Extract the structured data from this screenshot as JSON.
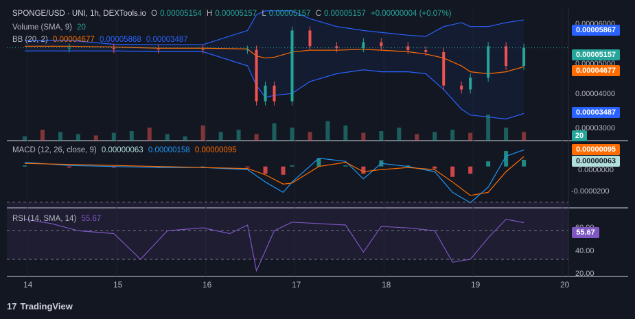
{
  "header": {
    "symbol": "SPONGE/USD · UNI, 1h, DEXTools.io",
    "o_label": "O",
    "o_value": "0.00005154",
    "h_label": "H",
    "h_value": "0.00005157",
    "l_label": "L",
    "l_value": "0.00005157",
    "c_label": "C",
    "c_value": "0.00005157",
    "change": "+0.00000004 (+0.07%)",
    "volume_label": "Volume (SMA, 9)",
    "volume_value": "20",
    "bb_label": "BB (20, 2)",
    "bb_basis": "0.00004677",
    "bb_upper": "0.00005868",
    "bb_lower": "0.00003487"
  },
  "price_tags": {
    "upper": "0.00005867",
    "last": "0.00005157",
    "basis": "0.00004677",
    "lower": "0.00003487",
    "volume": "20"
  },
  "price_axis": [
    "0.00006000",
    "0.00005000",
    "0.00004000",
    "0.00003000"
  ],
  "macd": {
    "label": "MACD (12, 26, close, 9)",
    "hist_value": "0.00000063",
    "macd_value": "0.00000158",
    "signal_value": "0.00000095",
    "tag_signal": "0.00000095",
    "tag_hist": "0.00000063",
    "axis": [
      "0.0000000",
      "-0.0000200"
    ]
  },
  "rsi": {
    "label": "RSI (14, SMA, 14)",
    "value": "55.67",
    "tag": "55.67",
    "axis": [
      "60.00",
      "40.00",
      "20.00"
    ]
  },
  "x_axis": [
    "14",
    "15",
    "16",
    "17",
    "18",
    "19",
    "20"
  ],
  "footer": {
    "brand": "TradingView",
    "logo": "17"
  },
  "colors": {
    "bg": "#131722",
    "up": "#26a69a",
    "down": "#ef5350",
    "bb_band": "#2962ff",
    "bb_basis": "#ff6d00",
    "macd": "#2196f3",
    "signal": "#ff6d00",
    "rsi": "#7e57c2"
  },
  "chart_data": [
    {
      "type": "candlestick",
      "title": "SPONGE/USD · UNI, 1h, DEXTools.io",
      "x": [
        "14",
        "14.5",
        "15",
        "15.5",
        "16",
        "16.5",
        "16.6",
        "16.7",
        "16.8",
        "17",
        "17.2",
        "17.5",
        "17.8",
        "18",
        "18.3",
        "18.5",
        "18.7",
        "18.9",
        "19",
        "19.2",
        "19.4",
        "19.6"
      ],
      "series": [
        {
          "name": "close",
          "values": [
            5.15e-05,
            5.16e-05,
            5.13e-05,
            5.12e-05,
            5.11e-05,
            5.11e-05,
            3.8e-05,
            4.2e-05,
            3.8e-05,
            5.6e-05,
            5.2e-05,
            5.15e-05,
            5.3e-05,
            5.2e-05,
            5.1e-05,
            5.05e-05,
            4.2e-05,
            4.1e-05,
            4.4e-05,
            5.2e-05,
            4.7e-05,
            5.16e-05
          ]
        },
        {
          "name": "BB upper",
          "values": [
            5.35e-05,
            5.35e-05,
            5.25e-05,
            5.24e-05,
            5.24e-05,
            5.6e-05,
            6e-05,
            6.1e-05,
            6.1e-05,
            6.1e-05,
            5.9e-05,
            5.7e-05,
            5.6e-05,
            5.55e-05,
            5.48e-05,
            5.45e-05,
            5.7e-05,
            5.8e-05,
            5.7e-05,
            5.7e-05,
            5.8e-05,
            5.87e-05
          ]
        },
        {
          "name": "BB basis",
          "values": [
            5.2e-05,
            5.2e-05,
            5.18e-05,
            5.15e-05,
            5.15e-05,
            5.13e-05,
            4.95e-05,
            4.9e-05,
            4.92e-05,
            5.05e-05,
            5.1e-05,
            5.1e-05,
            5.12e-05,
            5.1e-05,
            5.06e-05,
            5e-05,
            4.9e-05,
            4.7e-05,
            4.55e-05,
            4.5e-05,
            4.55e-05,
            4.68e-05
          ]
        },
        {
          "name": "BB lower",
          "values": [
            5.08e-05,
            5.08e-05,
            5.08e-05,
            5.06e-05,
            5.06e-05,
            4.7e-05,
            4.2e-05,
            3.9e-05,
            3.95e-05,
            4e-05,
            4.3e-05,
            4.5e-05,
            4.6e-05,
            4.55e-05,
            4.55e-05,
            4.5e-05,
            4.1e-05,
            3.6e-05,
            3.45e-05,
            3.4e-05,
            3.35e-05,
            3.49e-05
          ]
        }
      ],
      "ylim": [
        2.8e-05,
        6.2e-05
      ]
    },
    {
      "type": "bar",
      "title": "Volume (SMA, 9)",
      "x": [
        "14",
        "14.2",
        "14.4",
        "14.6",
        "14.8",
        "15",
        "15.2",
        "15.4",
        "15.6",
        "15.8",
        "16",
        "16.2",
        "16.4",
        "16.6",
        "16.8",
        "17",
        "17.2",
        "17.4",
        "17.6",
        "17.8",
        "18",
        "18.2",
        "18.4",
        "18.6",
        "18.8",
        "19",
        "19.2",
        "19.4",
        "19.6"
      ],
      "values": [
        10,
        25,
        20,
        15,
        12,
        18,
        22,
        30,
        15,
        10,
        35,
        20,
        25,
        15,
        40,
        30,
        20,
        45,
        35,
        18,
        22,
        30,
        15,
        20,
        25,
        18,
        60,
        30,
        20
      ]
    },
    {
      "type": "line",
      "title": "MACD (12, 26, close, 9)",
      "x": [
        "14",
        "14.5",
        "15",
        "15.5",
        "16",
        "16.5",
        "16.7",
        "16.9",
        "17",
        "17.3",
        "17.6",
        "17.8",
        "18",
        "18.3",
        "18.6",
        "18.8",
        "19",
        "19.2",
        "19.4",
        "19.6"
      ],
      "series": [
        {
          "name": "MACD",
          "values": [
            0.4,
            0.1,
            0.0,
            -0.1,
            -0.1,
            -0.3,
            -1.5,
            -2.5,
            -1.5,
            0.8,
            0.5,
            -1.2,
            0.3,
            0.0,
            -0.5,
            -2.5,
            -3.5,
            -2.0,
            1.0,
            1.6
          ]
        },
        {
          "name": "signal",
          "values": [
            0.3,
            0.2,
            0.1,
            0.0,
            -0.1,
            -0.2,
            -0.8,
            -1.7,
            -1.6,
            0.0,
            0.4,
            -0.5,
            -0.3,
            -0.1,
            -0.3,
            -1.5,
            -2.8,
            -2.5,
            -0.5,
            0.95
          ]
        }
      ],
      "ylim": [
        -4,
        2.5
      ]
    },
    {
      "type": "line",
      "title": "RSI (14, SMA, 14)",
      "x": [
        "14",
        "14.3",
        "14.6",
        "15",
        "15.3",
        "15.6",
        "16",
        "16.3",
        "16.5",
        "16.6",
        "16.8",
        "17",
        "17.3",
        "17.6",
        "17.8",
        "18",
        "18.3",
        "18.6",
        "18.8",
        "19",
        "19.2",
        "19.4",
        "19.6"
      ],
      "series": [
        {
          "name": "RSI",
          "values": [
            58,
            55,
            50,
            48,
            30,
            50,
            52,
            48,
            54,
            22,
            50,
            56,
            55,
            54,
            35,
            53,
            52,
            50,
            28,
            30,
            45,
            58,
            55.67
          ]
        }
      ],
      "ylim": [
        18,
        66
      ]
    }
  ]
}
